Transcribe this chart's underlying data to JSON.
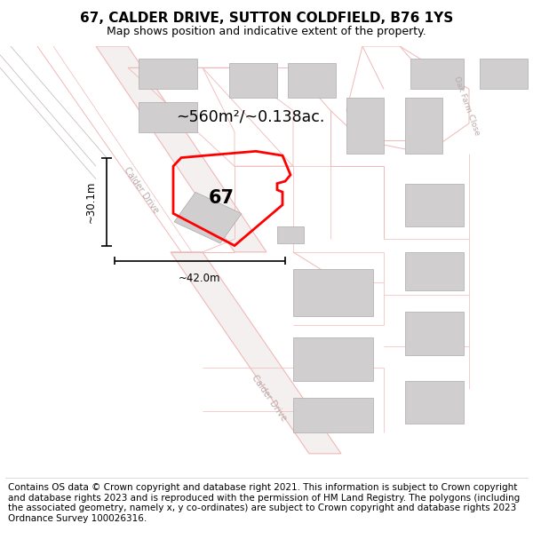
{
  "title": "67, CALDER DRIVE, SUTTON COLDFIELD, B76 1YS",
  "subtitle": "Map shows position and indicative extent of the property.",
  "footer": "Contains OS data © Crown copyright and database right 2021. This information is subject to Crown copyright and database rights 2023 and is reproduced with the permission of HM Land Registry. The polygons (including the associated geometry, namely x, y co-ordinates) are subject to Crown copyright and database rights 2023 Ordnance Survey 100026316.",
  "area_text": "~560m²/~0.138ac.",
  "property_label": "67",
  "dim_horizontal": "~42.0m",
  "dim_vertical": "~30.1m",
  "map_bg": "#f9f6f6",
  "road_label_upper": "Calder Drive",
  "road_label_lower": "Calder Drive",
  "road_label_corner": "Oak Farm Close",
  "red_color": "#ff0000",
  "pink_road": "#f0b8b8",
  "gray_building": "#d0cece",
  "title_fontsize": 11,
  "subtitle_fontsize": 9,
  "footer_fontsize": 7.5
}
